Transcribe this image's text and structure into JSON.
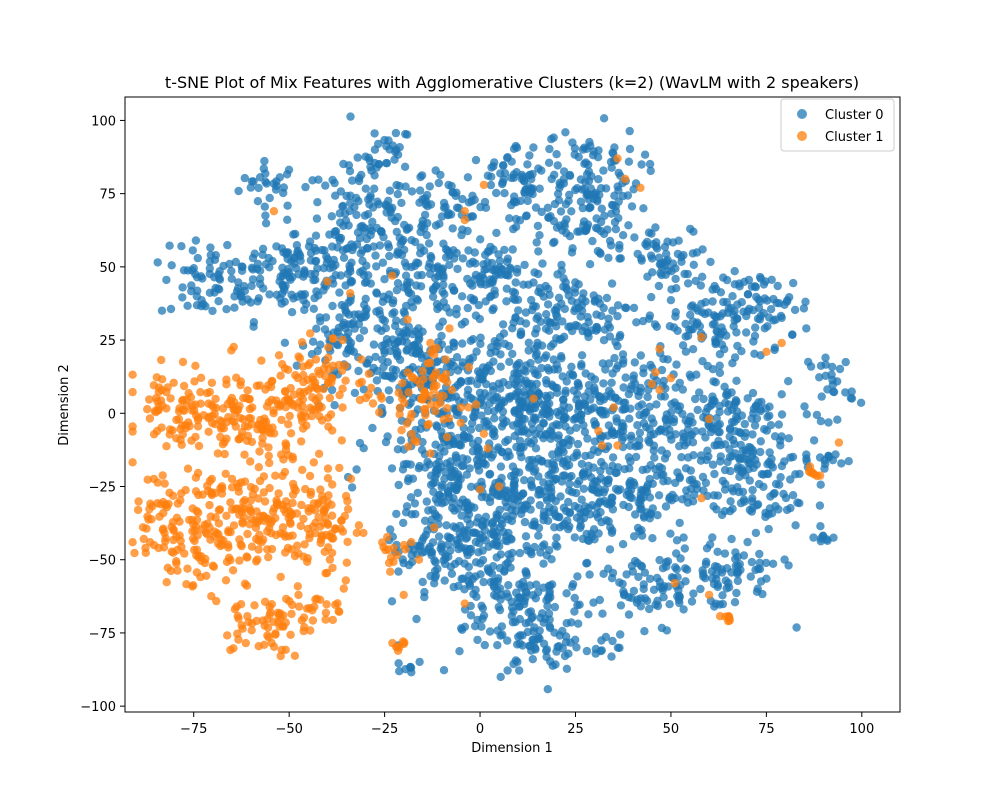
{
  "chart_data": {
    "type": "scatter",
    "title": "t-SNE Plot of Mix Features with Agglomerative Clusters (k=2) (WavLM with 2 speakers)",
    "xlabel": "Dimension 1",
    "ylabel": "Dimension 2",
    "xlim": [
      -93,
      110
    ],
    "ylim": [
      -102,
      108
    ],
    "xticks": [
      -75,
      -50,
      -25,
      0,
      25,
      50,
      75,
      100
    ],
    "yticks": [
      -100,
      -75,
      -50,
      -25,
      0,
      25,
      50,
      75,
      100
    ],
    "xtick_labels": [
      "−75",
      "−50",
      "−25",
      "0",
      "25",
      "50",
      "75",
      "100"
    ],
    "ytick_labels": [
      "−100",
      "−75",
      "−50",
      "−25",
      "0",
      "25",
      "50",
      "75",
      "100"
    ],
    "grid": false,
    "legend_position": "top-right",
    "series": [
      {
        "name": "Cluster 0",
        "color": "#1f77b4",
        "regions": [
          {
            "cx": -55,
            "cy": 78,
            "sx": 4,
            "sy": 4
          },
          {
            "cx": -24,
            "cy": 88,
            "sx": 3,
            "sy": 5
          },
          {
            "cx": -70,
            "cy": 44,
            "sx": 7,
            "sy": 6
          },
          {
            "cx": -50,
            "cy": 48,
            "sx": 9,
            "sy": 8
          },
          {
            "cx": -30,
            "cy": 62,
            "sx": 9,
            "sy": 12
          },
          {
            "cx": -10,
            "cy": 46,
            "sx": 9,
            "sy": 7
          },
          {
            "cx": -10,
            "cy": 70,
            "sx": 6,
            "sy": 5
          },
          {
            "cx": 5,
            "cy": 46,
            "sx": 7,
            "sy": 6
          },
          {
            "cx": 10,
            "cy": 80,
            "sx": 7,
            "sy": 6
          },
          {
            "cx": 28,
            "cy": 82,
            "sx": 7,
            "sy": 8
          },
          {
            "cx": 25,
            "cy": 64,
            "sx": 8,
            "sy": 6
          },
          {
            "cx": 50,
            "cy": 52,
            "sx": 6,
            "sy": 6
          },
          {
            "cx": 60,
            "cy": 30,
            "sx": 8,
            "sy": 8
          },
          {
            "cx": 75,
            "cy": 36,
            "sx": 6,
            "sy": 6
          },
          {
            "cx": 92,
            "cy": 10,
            "sx": 3,
            "sy": 6
          },
          {
            "cx": -32,
            "cy": 26,
            "sx": 8,
            "sy": 8
          },
          {
            "cx": -15,
            "cy": 14,
            "sx": 9,
            "sy": 10
          },
          {
            "cx": -8,
            "cy": -10,
            "sx": 10,
            "sy": 10
          },
          {
            "cx": 5,
            "cy": 10,
            "sx": 10,
            "sy": 10
          },
          {
            "cx": 25,
            "cy": 34,
            "sx": 9,
            "sy": 8
          },
          {
            "cx": 20,
            "cy": 0,
            "sx": 11,
            "sy": 11
          },
          {
            "cx": 42,
            "cy": 0,
            "sx": 10,
            "sy": 10
          },
          {
            "cx": 65,
            "cy": -5,
            "sx": 8,
            "sy": 10
          },
          {
            "cx": 70,
            "cy": -25,
            "sx": 8,
            "sy": 8
          },
          {
            "cx": 90,
            "cy": -15,
            "sx": 3,
            "sy": 3
          },
          {
            "cx": 90,
            "cy": -42,
            "sx": 2,
            "sy": 2
          },
          {
            "cx": 0,
            "cy": -30,
            "sx": 10,
            "sy": 9
          },
          {
            "cx": 18,
            "cy": -28,
            "sx": 10,
            "sy": 10
          },
          {
            "cx": 40,
            "cy": -30,
            "sx": 9,
            "sy": 9
          },
          {
            "cx": -8,
            "cy": -50,
            "sx": 9,
            "sy": 8
          },
          {
            "cx": 8,
            "cy": -60,
            "sx": 9,
            "sy": 9
          },
          {
            "cx": 18,
            "cy": -78,
            "sx": 6,
            "sy": 7
          },
          {
            "cx": 45,
            "cy": -60,
            "sx": 8,
            "sy": 6
          },
          {
            "cx": 65,
            "cy": -55,
            "sx": 7,
            "sy": 6
          },
          {
            "cx": 34,
            "cy": -80,
            "sx": 2,
            "sy": 2
          },
          {
            "cx": -18,
            "cy": -85,
            "sx": 2,
            "sy": 3
          }
        ]
      },
      {
        "name": "Cluster 1",
        "color": "#ff7f0e",
        "regions": [
          {
            "cx": -80,
            "cy": 2,
            "sx": 5,
            "sy": 7
          },
          {
            "cx": -66,
            "cy": -2,
            "sx": 8,
            "sy": 9
          },
          {
            "cx": -50,
            "cy": 0,
            "sx": 6,
            "sy": 8
          },
          {
            "cx": -42,
            "cy": 10,
            "sx": 5,
            "sy": 7
          },
          {
            "cx": -80,
            "cy": -38,
            "sx": 6,
            "sy": 9
          },
          {
            "cx": -66,
            "cy": -38,
            "sx": 7,
            "sy": 9
          },
          {
            "cx": -52,
            "cy": -34,
            "sx": 6,
            "sy": 10
          },
          {
            "cx": -40,
            "cy": -38,
            "sx": 4,
            "sy": 10
          },
          {
            "cx": -58,
            "cy": -72,
            "sx": 6,
            "sy": 5
          },
          {
            "cx": -46,
            "cy": -68,
            "sx": 5,
            "sy": 4
          },
          {
            "cx": -24,
            "cy": -48,
            "sx": 2,
            "sy": 4
          },
          {
            "cx": -21,
            "cy": -79,
            "sx": 1,
            "sy": 1
          },
          {
            "cx": -15,
            "cy": 5,
            "sx": 5,
            "sy": 8
          },
          {
            "cx": -28,
            "cy": 5,
            "sx": 2,
            "sy": 2
          },
          {
            "cx": 65,
            "cy": -70,
            "sx": 2,
            "sy": 1
          },
          {
            "cx": 87,
            "cy": -21,
            "sx": 1,
            "sy": 1
          }
        ],
        "outliers": [
          [
            -54,
            69
          ],
          [
            -40,
            45
          ],
          [
            -23,
            47
          ],
          [
            -34,
            41
          ],
          [
            -19,
            32
          ],
          [
            -8,
            29
          ],
          [
            -36,
            25
          ],
          [
            -13,
            24
          ],
          [
            -12,
            20
          ],
          [
            -10,
            12
          ],
          [
            -5,
            2
          ],
          [
            -3,
            2
          ],
          [
            -1,
            3
          ],
          [
            1,
            -7
          ],
          [
            2,
            -12
          ],
          [
            0,
            -26
          ],
          [
            5,
            -25
          ],
          [
            -12,
            -39
          ],
          [
            -18,
            -44
          ],
          [
            -16,
            -50
          ],
          [
            -4,
            -65
          ],
          [
            -20,
            -62
          ],
          [
            1,
            78
          ],
          [
            -4,
            69
          ],
          [
            -4,
            66
          ],
          [
            36,
            87
          ],
          [
            38,
            80
          ],
          [
            42,
            77
          ],
          [
            35,
            2
          ],
          [
            32,
            -11
          ],
          [
            36,
            -11
          ],
          [
            45,
            10
          ],
          [
            46,
            14
          ],
          [
            47,
            22
          ],
          [
            50,
            12
          ],
          [
            58,
            26
          ],
          [
            58,
            -29
          ],
          [
            60,
            -2
          ],
          [
            51,
            -58
          ],
          [
            60,
            -62
          ],
          [
            75,
            21
          ],
          [
            79,
            24
          ],
          [
            94,
            -10
          ],
          [
            14,
            5
          ],
          [
            31,
            -6
          ],
          [
            47,
            8
          ]
        ]
      }
    ]
  }
}
